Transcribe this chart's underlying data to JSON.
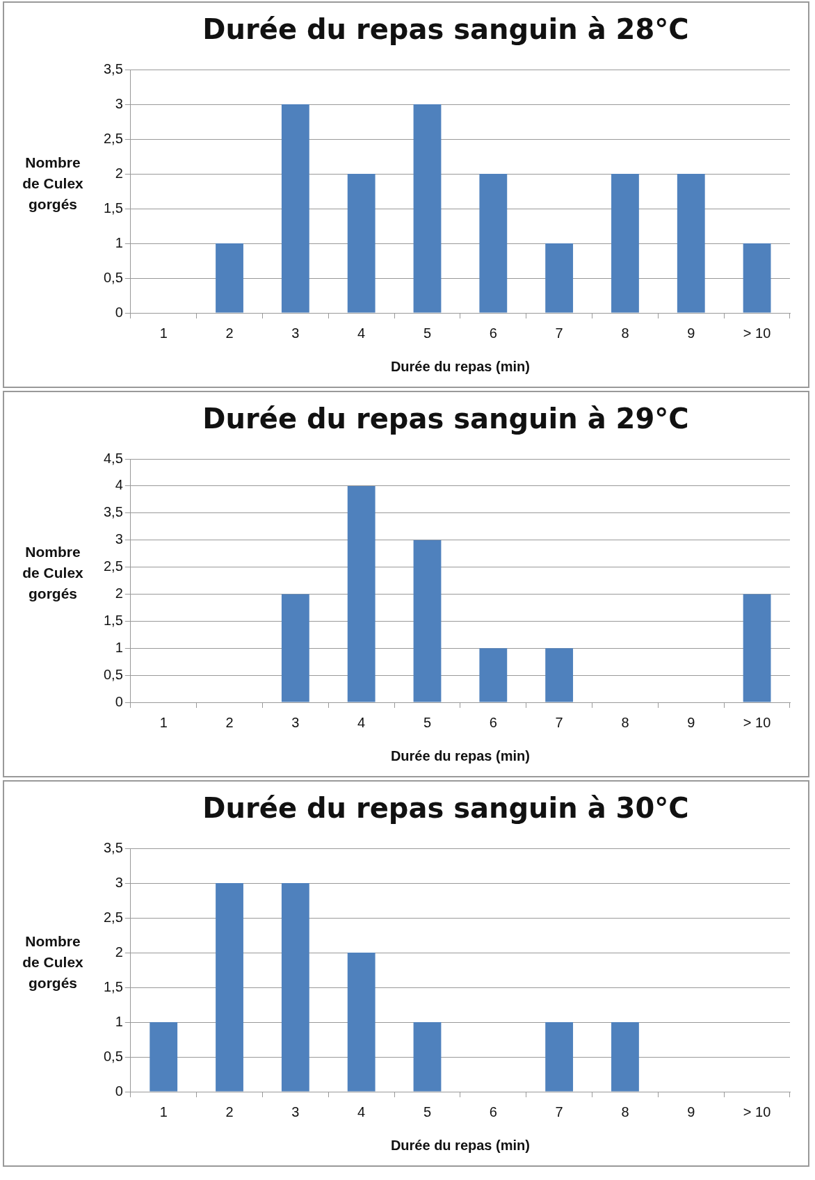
{
  "chart_data": [
    {
      "type": "bar",
      "title": "Durée du repas sanguin à 28°C",
      "xlabel": "Durée du repas (min)",
      "ylabel": "Nombre de Culex gorgés",
      "categories": [
        "1",
        "2",
        "3",
        "4",
        "5",
        "6",
        "7",
        "8",
        "9",
        "> 10"
      ],
      "values": [
        0,
        1,
        3,
        2,
        3,
        2,
        1,
        2,
        2,
        1
      ],
      "color": "#4f81bd",
      "ylim": [
        0,
        3.5
      ],
      "yticks": [
        0,
        {
          "value": 0.5,
          "label": "0,5"
        },
        1,
        {
          "value": 1.5,
          "label": "1,5"
        },
        2,
        {
          "value": 2.5,
          "label": "2,5"
        },
        3,
        {
          "value": 3.5,
          "label": "3,5"
        }
      ],
      "grid": "y",
      "legend": false
    },
    {
      "type": "bar",
      "title": "Durée du repas sanguin à 29°C",
      "xlabel": "Durée du repas (min)",
      "ylabel": "Nombre de Culex gorgés",
      "categories": [
        "1",
        "2",
        "3",
        "4",
        "5",
        "6",
        "7",
        "8",
        "9",
        "> 10"
      ],
      "values": [
        0,
        0,
        2,
        4,
        3,
        1,
        1,
        0,
        0,
        2
      ],
      "color": "#4f81bd",
      "ylim": [
        0,
        4.5
      ],
      "yticks": [
        0,
        {
          "value": 0.5,
          "label": "0,5"
        },
        1,
        {
          "value": 1.5,
          "label": "1,5"
        },
        2,
        {
          "value": 2.5,
          "label": "2,5"
        },
        3,
        {
          "value": 3.5,
          "label": "3,5"
        },
        4,
        {
          "value": 4.5,
          "label": "4,5"
        }
      ],
      "grid": "y",
      "legend": false
    },
    {
      "type": "bar",
      "title": "Durée du repas sanguin à 30°C",
      "xlabel": "Durée du repas (min)",
      "ylabel": "Nombre de Culex gorgés",
      "categories": [
        "1",
        "2",
        "3",
        "4",
        "5",
        "6",
        "7",
        "8",
        "9",
        "> 10"
      ],
      "values": [
        1,
        3,
        3,
        2,
        1,
        0,
        1,
        1,
        0,
        0
      ],
      "color": "#4f81bd",
      "ylim": [
        0,
        3.5
      ],
      "yticks": [
        0,
        {
          "value": 0.5,
          "label": "0,5"
        },
        1,
        {
          "value": 1.5,
          "label": "1,5"
        },
        2,
        {
          "value": 2.5,
          "label": "2,5"
        },
        3,
        {
          "value": 3.5,
          "label": "3,5"
        }
      ],
      "grid": "y",
      "legend": false
    }
  ]
}
